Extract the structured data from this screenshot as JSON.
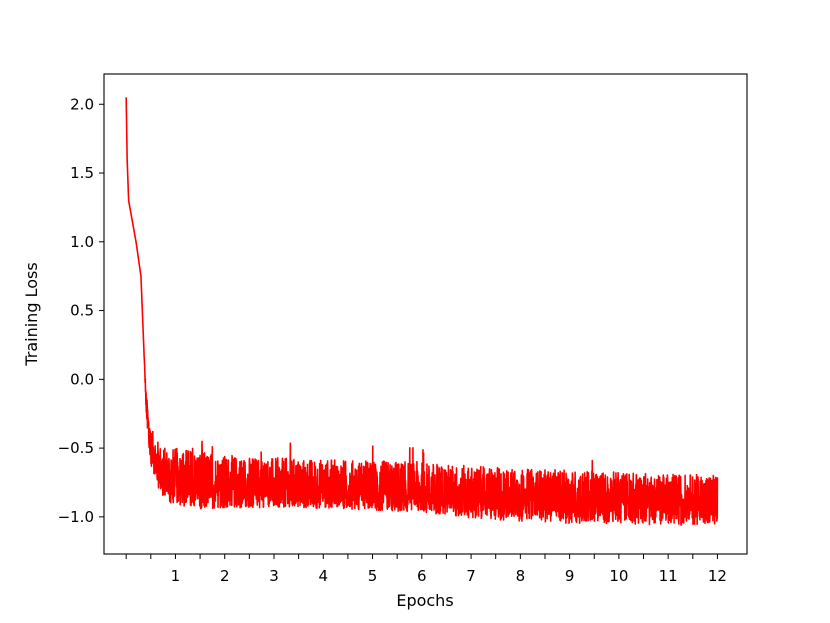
{
  "chart_data": {
    "type": "line",
    "title": "",
    "xlabel": "Epochs",
    "ylabel": "Training Loss",
    "xlim": [
      -0.45,
      12.6
    ],
    "ylim": [
      -1.27,
      2.22
    ],
    "grid": false,
    "legend": "none",
    "line_color": "#ff0000",
    "x_ticks": [
      1,
      2,
      3,
      4,
      5,
      6,
      7,
      8,
      9,
      10,
      11,
      12
    ],
    "x_tick_marks": [
      0,
      0.5,
      1,
      1.5,
      2,
      2.5,
      3,
      3.5,
      4,
      4.5,
      5,
      5.5,
      6,
      6.5,
      7,
      7.5,
      8,
      8.5,
      9,
      9.5,
      10,
      10.5,
      11,
      11.5,
      12
    ],
    "y_ticks": [
      -1.0,
      -0.5,
      0.0,
      0.5,
      1.0,
      1.5,
      2.0
    ],
    "y_tick_labels": [
      "−1.0",
      "−0.5",
      "0.0",
      "0.5",
      "1.0",
      "1.5",
      "2.0"
    ],
    "series": [
      {
        "x": [
          0.0,
          0.02,
          0.05,
          0.1,
          0.2,
          0.3,
          0.35,
          0.4,
          0.45,
          0.5,
          0.6,
          0.7,
          0.85,
          1.0,
          1.25,
          1.5,
          2.0,
          3.0,
          4.0,
          5.0,
          6.0,
          7.0,
          8.0,
          9.0,
          10.0,
          11.0,
          12.0
        ],
        "y": [
          2.05,
          1.6,
          1.3,
          1.2,
          1.0,
          0.75,
          0.3,
          -0.15,
          -0.35,
          -0.5,
          -0.6,
          -0.68,
          -0.72,
          -0.74,
          -0.76,
          -0.78,
          -0.8,
          -0.81,
          -0.82,
          -0.83,
          -0.84,
          -0.86,
          -0.87,
          -0.88,
          -0.88,
          -0.89,
          -0.89
        ],
        "noise_lower": [
          0,
          0,
          0,
          0,
          0,
          0,
          0,
          0.06,
          0.1,
          0.12,
          0.14,
          0.16,
          0.17,
          0.17,
          0.17,
          0.16,
          0.14,
          0.12,
          0.12,
          0.12,
          0.13,
          0.15,
          0.16,
          0.17,
          0.17,
          0.17,
          0.17
        ],
        "noise_upper": [
          0,
          0,
          0,
          0,
          0,
          0,
          0,
          0.08,
          0.12,
          0.15,
          0.18,
          0.2,
          0.22,
          0.24,
          0.26,
          0.26,
          0.25,
          0.24,
          0.24,
          0.24,
          0.24,
          0.23,
          0.22,
          0.22,
          0.21,
          0.2,
          0.2
        ]
      }
    ]
  }
}
